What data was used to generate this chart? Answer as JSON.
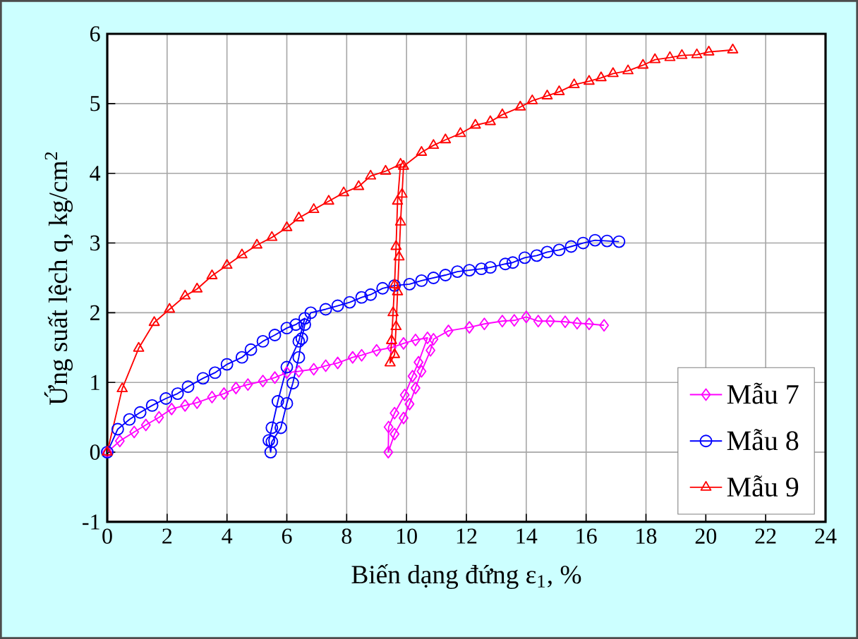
{
  "chart_data": {
    "type": "line",
    "xlabel": "Biến dạng đứng ε$_{1}$, %",
    "ylabel": "Ứng suất lệch q, kg/cm$^{2}$",
    "xlim": [
      0,
      24
    ],
    "xticks": [
      0,
      2,
      4,
      6,
      8,
      10,
      12,
      14,
      16,
      18,
      20,
      22,
      24
    ],
    "ylim": [
      -1,
      6
    ],
    "yticks": [
      -1,
      0,
      1,
      2,
      3,
      4,
      5,
      6
    ],
    "grid": true,
    "legend": "bottom right",
    "series": [
      {
        "name": "Mẫu 7",
        "color": "#ff00ff",
        "marker": "diamond",
        "x": [
          0,
          0.42,
          0.9,
          1.29,
          1.73,
          2.15,
          2.6,
          3.0,
          3.5,
          3.9,
          4.3,
          4.7,
          5.2,
          5.6,
          6.0,
          6.4,
          6.9,
          7.3,
          7.7,
          8.2,
          8.5,
          9.0,
          9.5,
          9.9,
          10.3,
          10.7,
          10.4,
          10.2,
          9.94,
          9.6,
          9.4,
          9.39,
          9.6,
          9.9,
          10.1,
          10.3,
          10.5,
          10.8,
          10.9,
          11.4,
          12.1,
          12.6,
          13.2,
          13.6,
          14.0,
          14.4,
          14.8,
          15.3,
          15.7,
          16.1,
          16.6
        ],
        "values": [
          0,
          0.16,
          0.29,
          0.39,
          0.5,
          0.62,
          0.67,
          0.71,
          0.79,
          0.84,
          0.92,
          0.97,
          1.02,
          1.07,
          1.14,
          1.16,
          1.19,
          1.24,
          1.28,
          1.36,
          1.39,
          1.46,
          1.5,
          1.56,
          1.61,
          1.64,
          1.29,
          1.09,
          0.82,
          0.56,
          0.36,
          0,
          0.26,
          0.49,
          0.69,
          0.92,
          1.16,
          1.46,
          1.62,
          1.74,
          1.79,
          1.84,
          1.88,
          1.89,
          1.94,
          1.88,
          1.88,
          1.87,
          1.85,
          1.84,
          1.82
        ]
      },
      {
        "name": "Mẫu 8",
        "color": "#0000ff",
        "marker": "circle",
        "x": [
          0,
          0.35,
          0.74,
          1.1,
          1.5,
          1.96,
          2.35,
          2.7,
          3.2,
          3.6,
          4.0,
          4.5,
          4.8,
          5.2,
          5.6,
          6.0,
          6.3,
          6.6,
          6.4,
          6.0,
          5.7,
          5.5,
          5.4,
          5.46,
          5.5,
          5.8,
          6.0,
          6.2,
          6.4,
          6.5,
          6.6,
          6.8,
          7.3,
          7.7,
          8.1,
          8.5,
          8.8,
          9.2,
          9.6,
          10.1,
          10.5,
          10.9,
          11.3,
          11.7,
          12.1,
          12.5,
          12.8,
          13.3,
          13.55,
          13.95,
          14.35,
          14.7,
          15.1,
          15.5,
          15.9,
          16.3,
          16.7,
          17.1
        ],
        "values": [
          0,
          0.33,
          0.47,
          0.57,
          0.67,
          0.77,
          0.84,
          0.94,
          1.06,
          1.14,
          1.26,
          1.36,
          1.47,
          1.59,
          1.68,
          1.78,
          1.83,
          1.92,
          1.59,
          1.22,
          0.73,
          0.35,
          0.17,
          0,
          0.15,
          0.35,
          0.7,
          0.99,
          1.36,
          1.63,
          1.83,
          2.0,
          2.05,
          2.1,
          2.15,
          2.22,
          2.26,
          2.35,
          2.39,
          2.41,
          2.46,
          2.5,
          2.54,
          2.59,
          2.61,
          2.63,
          2.65,
          2.7,
          2.72,
          2.79,
          2.82,
          2.87,
          2.9,
          2.95,
          3.0,
          3.04,
          3.03,
          3.02
        ]
      },
      {
        "name": "Mẫu 9",
        "color": "#ff0000",
        "marker": "triangle",
        "x": [
          0,
          0.5,
          1.05,
          1.57,
          2.08,
          2.6,
          3.0,
          3.5,
          4.0,
          4.5,
          5.0,
          5.5,
          6.0,
          6.4,
          6.9,
          7.4,
          7.9,
          8.4,
          8.8,
          9.3,
          9.8,
          9.7,
          9.65,
          9.6,
          9.55,
          9.5,
          9.45,
          9.6,
          9.65,
          9.7,
          9.75,
          9.8,
          9.85,
          9.9,
          10.5,
          10.9,
          11.3,
          11.8,
          12.3,
          12.8,
          13.2,
          13.8,
          14.2,
          14.7,
          15.1,
          15.6,
          16.1,
          16.5,
          16.9,
          17.4,
          17.9,
          18.3,
          18.8,
          19.2,
          19.7,
          20.1,
          20.9
        ],
        "values": [
          0,
          0.91,
          1.49,
          1.86,
          2.05,
          2.24,
          2.34,
          2.53,
          2.68,
          2.83,
          2.97,
          3.08,
          3.22,
          3.36,
          3.48,
          3.6,
          3.72,
          3.81,
          3.96,
          4.03,
          4.13,
          3.6,
          2.95,
          2.4,
          2.0,
          1.6,
          1.28,
          1.4,
          1.8,
          2.3,
          2.8,
          3.3,
          3.7,
          4.1,
          4.3,
          4.4,
          4.48,
          4.57,
          4.69,
          4.74,
          4.84,
          4.95,
          5.04,
          5.11,
          5.17,
          5.27,
          5.32,
          5.37,
          5.43,
          5.47,
          5.55,
          5.63,
          5.66,
          5.69,
          5.7,
          5.74,
          5.77
        ]
      }
    ]
  }
}
